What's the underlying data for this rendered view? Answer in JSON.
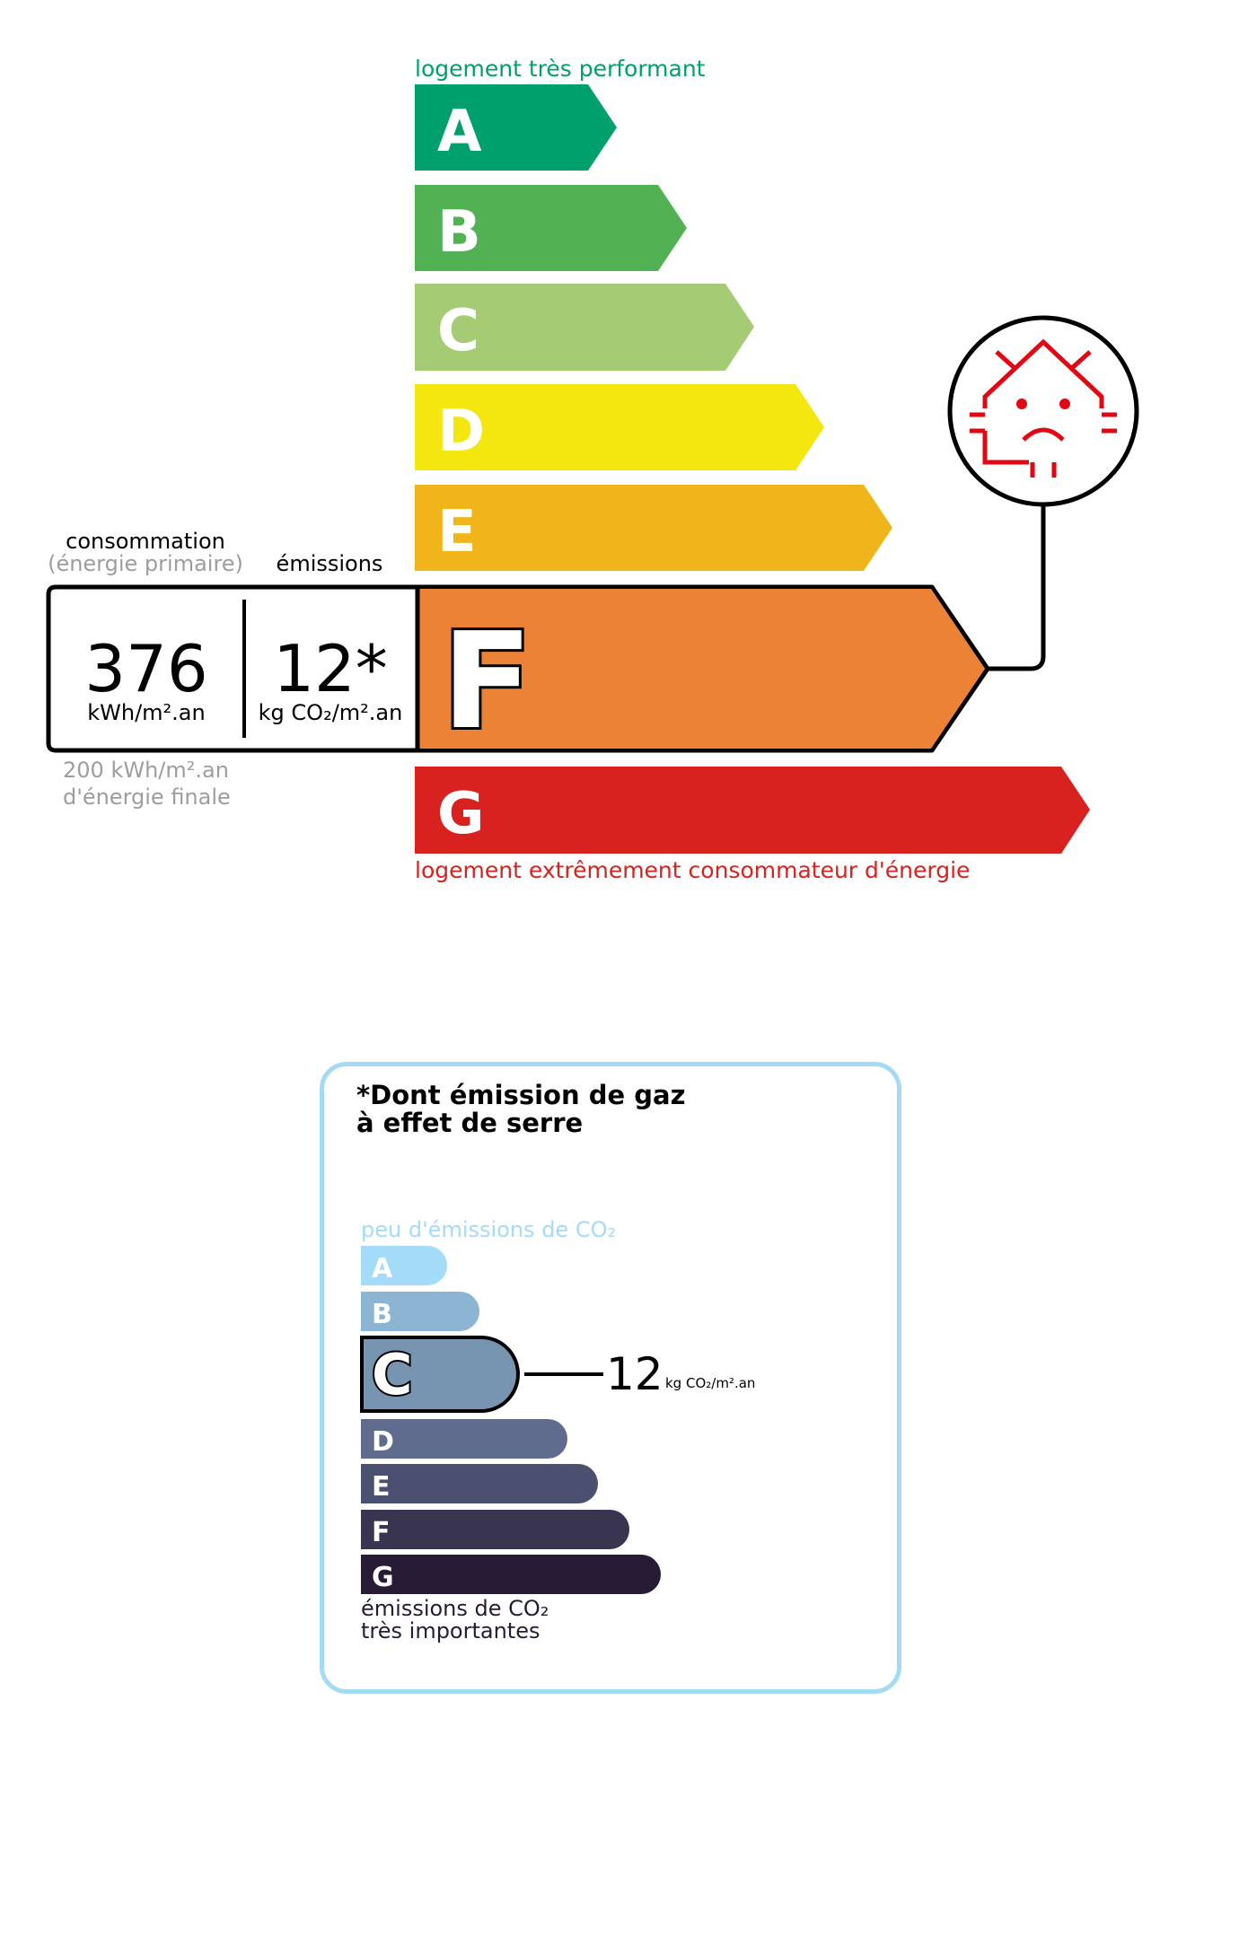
{
  "dpe": {
    "top_label": "logement très performant",
    "bottom_label": "logement extrêmement consommateur d'énergie",
    "classes": [
      {
        "letter": "A",
        "color": "#00a06d"
      },
      {
        "letter": "B",
        "color": "#52b153"
      },
      {
        "letter": "C",
        "color": "#a5cc74"
      },
      {
        "letter": "D",
        "color": "#f4e70f"
      },
      {
        "letter": "E",
        "color": "#f0b51a"
      },
      {
        "letter": "F",
        "color": "#eb8235"
      },
      {
        "letter": "G",
        "color": "#d7221f"
      }
    ],
    "current_class": "F",
    "consumption_label": "consommation",
    "consumption_sub": "(énergie primaire)",
    "emissions_label": "émissions",
    "consumption_value": "376",
    "consumption_unit": "kWh/m².an",
    "emissions_value": "12*",
    "emissions_unit": "kg CO₂/m².an",
    "final_energy_value": "200 kWh/m².an",
    "final_energy_label": "d'énergie finale",
    "passoire_icon": "sad-house-heat-loss-icon",
    "accent_red": "#e30613"
  },
  "ges": {
    "title_line1": "*Dont émission de gaz",
    "title_line2": "à effet de serre",
    "top_label": "peu d'émissions de CO₂",
    "bottom_label_line1": "émissions de CO₂",
    "bottom_label_line2": "très importantes",
    "classes": [
      {
        "letter": "A",
        "color": "#a4dbf8"
      },
      {
        "letter": "B",
        "color": "#8cb4d3"
      },
      {
        "letter": "C",
        "color": "#7794b1"
      },
      {
        "letter": "D",
        "color": "#5f6c8e"
      },
      {
        "letter": "E",
        "color": "#4b5070"
      },
      {
        "letter": "F",
        "color": "#393551"
      },
      {
        "letter": "G",
        "color": "#281b35"
      }
    ],
    "current_class": "C",
    "value": "12",
    "unit": "kg CO₂/m².an",
    "border_color": "#a3daf5"
  }
}
